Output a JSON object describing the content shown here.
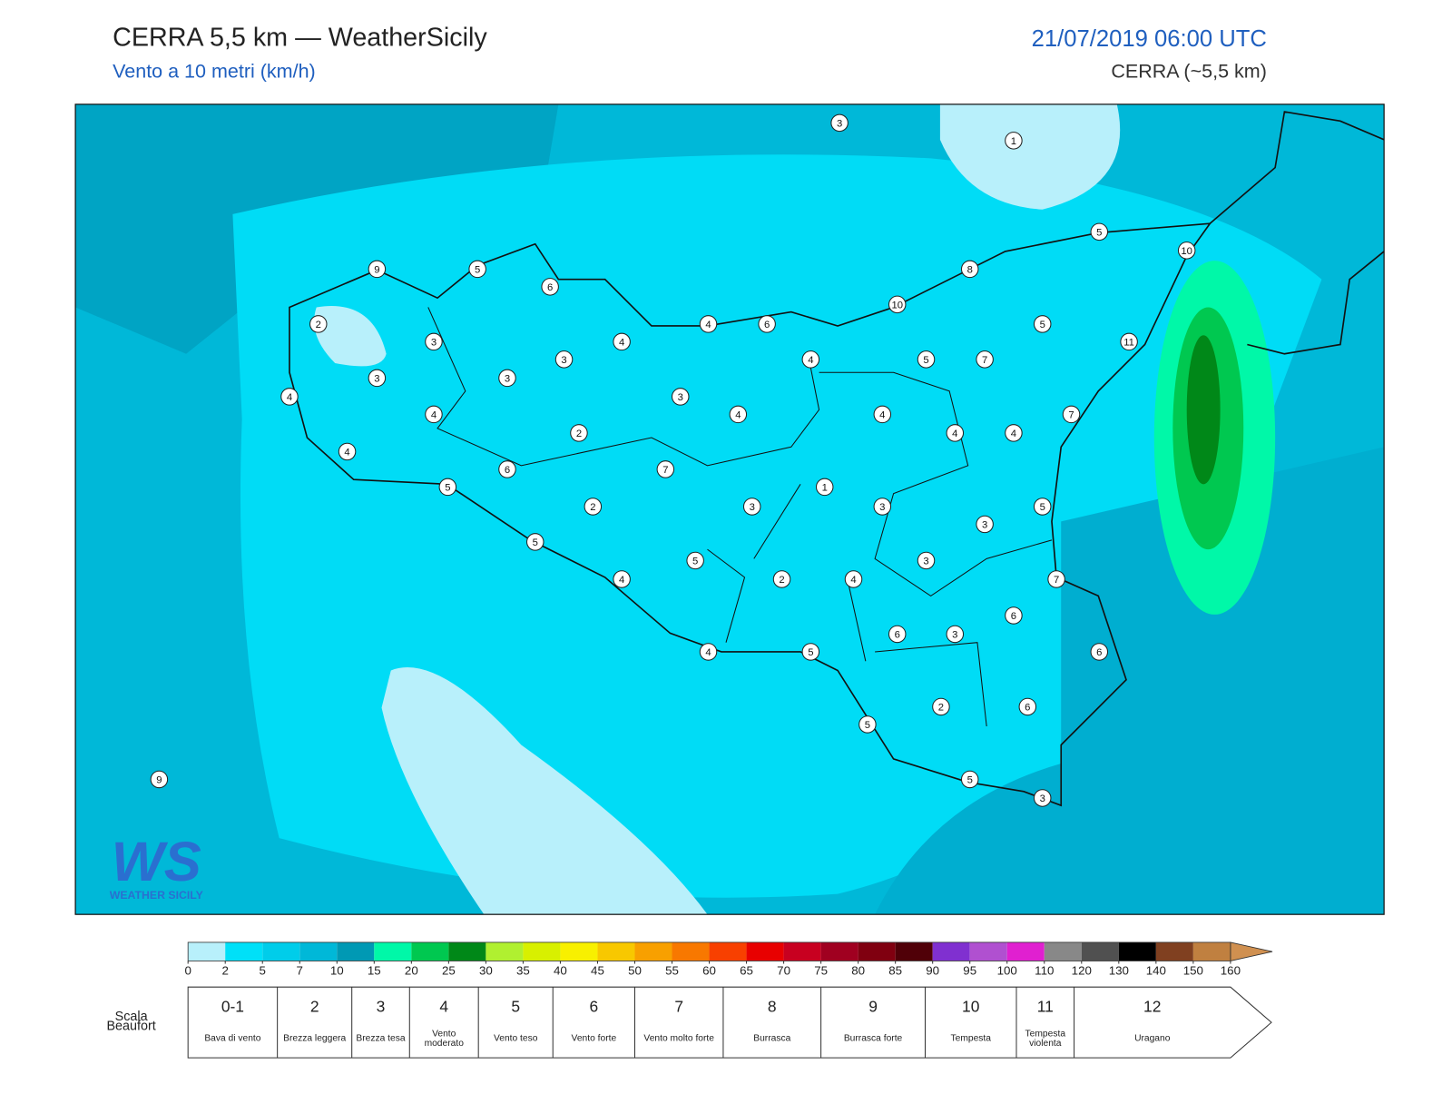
{
  "header": {
    "title": "CERRA 5,5 km — WeatherSicily",
    "subtitle": "Vento a 10 metri (km/h)",
    "datetime": "21/07/2019 06:00 UTC",
    "model": "CERRA (~5,5 km)"
  },
  "map": {
    "stations": [
      3,
      1,
      5,
      10,
      9,
      5,
      6,
      8,
      10,
      2,
      4,
      6,
      5,
      11,
      3,
      4,
      3,
      4,
      5,
      7,
      3,
      3,
      4,
      3,
      4,
      4,
      4,
      7,
      2,
      4,
      4,
      4,
      6,
      7,
      5,
      1,
      2,
      3,
      3,
      5,
      3,
      5,
      5,
      3,
      4,
      2,
      4,
      7,
      6,
      6,
      3,
      4,
      5,
      6,
      2,
      6,
      5,
      5,
      3,
      9
    ]
  },
  "logo": {
    "initials": "WS",
    "name": "WEATHER SICILY"
  },
  "colorbar": {
    "ticks": [
      0,
      2,
      5,
      7,
      10,
      15,
      20,
      25,
      30,
      35,
      40,
      45,
      50,
      55,
      60,
      65,
      70,
      75,
      80,
      85,
      90,
      95,
      100,
      110,
      120,
      130,
      140,
      150,
      160
    ],
    "colors": [
      "#b8f0fb",
      "#00e0f8",
      "#00cdea",
      "#00b8d8",
      "#0099b4",
      "#00f8a8",
      "#00c850",
      "#008818",
      "#b0f030",
      "#d8f000",
      "#f8f000",
      "#f8c800",
      "#f8a000",
      "#f87800",
      "#f84000",
      "#e80000",
      "#c80020",
      "#a00020",
      "#800010",
      "#500008",
      "#8030d0",
      "#b050d0",
      "#e020d0",
      "#888888",
      "#505050",
      "#000000",
      "#804020",
      "#c08040",
      "#d09050"
    ]
  },
  "beaufort": {
    "label": "Scala Beaufort",
    "levels": [
      {
        "force": "0-1",
        "description": "Bava di vento"
      },
      {
        "force": 2,
        "description": "Brezza leggera"
      },
      {
        "force": 3,
        "description": "Brezza tesa"
      },
      {
        "force": 4,
        "description": "Vento moderato"
      },
      {
        "force": 5,
        "description": "Vento teso"
      },
      {
        "force": 6,
        "description": "Vento forte"
      },
      {
        "force": 7,
        "description": "Vento molto forte"
      },
      {
        "force": 8,
        "description": "Burrasca"
      },
      {
        "force": 9,
        "description": "Burrasca forte"
      },
      {
        "force": 10,
        "description": "Tempesta"
      },
      {
        "force": 11,
        "description": "Tempesta violenta"
      },
      {
        "force": 12,
        "description": "Uragano"
      }
    ]
  }
}
